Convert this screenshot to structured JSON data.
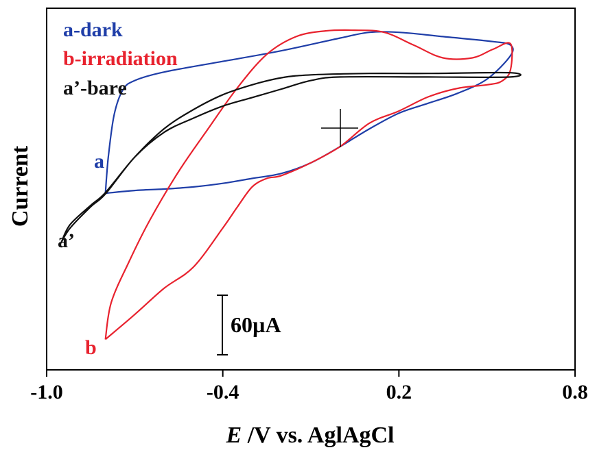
{
  "chart_data": {
    "type": "line",
    "title": "",
    "xlabel_italic": "E",
    "xlabel_rest": " /V vs. AglAgCl",
    "ylabel": "Current",
    "xlim": [
      -1.0,
      0.8
    ],
    "ylim": [
      -330,
      180
    ],
    "y_ticks_shown": false,
    "x_ticks": [
      -1.0,
      -0.4,
      0.2,
      0.8
    ],
    "x_tick_labels": [
      "-1.0",
      "-0.4",
      "0.2",
      "0.8"
    ],
    "grid": false,
    "legend_position": "top-left",
    "legend": [
      {
        "text": "a-dark",
        "color": "#1f3ea8"
      },
      {
        "text": "b-irradiation",
        "color": "#e8222e"
      },
      {
        "text": "a’-bare",
        "color": "#111111"
      }
    ],
    "curve_labels": [
      {
        "text": "a",
        "color": "#1f3ea8"
      },
      {
        "text": "a’",
        "color": "#111111"
      },
      {
        "text": "b",
        "color": "#e8222e"
      }
    ],
    "scale_bar": {
      "label": "60µA",
      "value_uA": 60
    },
    "series": [
      {
        "name": "a-dark",
        "color": "#1f3ea8",
        "points": [
          [
            -0.8,
            -81
          ],
          [
            -0.79,
            -30
          ],
          [
            -0.77,
            30
          ],
          [
            -0.74,
            65
          ],
          [
            -0.7,
            78
          ],
          [
            -0.6,
            90
          ],
          [
            -0.4,
            105
          ],
          [
            -0.2,
            120
          ],
          [
            0.0,
            138
          ],
          [
            0.1,
            146
          ],
          [
            0.2,
            146
          ],
          [
            0.35,
            140
          ],
          [
            0.52,
            133
          ],
          [
            0.58,
            128
          ],
          [
            0.58,
            113
          ],
          [
            0.5,
            80
          ],
          [
            0.4,
            60
          ],
          [
            0.3,
            46
          ],
          [
            0.2,
            32
          ],
          [
            0.1,
            10
          ],
          [
            0.0,
            -15
          ],
          [
            -0.1,
            -38
          ],
          [
            -0.2,
            -53
          ],
          [
            -0.3,
            -60
          ],
          [
            -0.4,
            -67
          ],
          [
            -0.5,
            -72
          ],
          [
            -0.6,
            -75
          ],
          [
            -0.7,
            -77
          ],
          [
            -0.8,
            -81
          ]
        ]
      },
      {
        "name": "b-irradiation",
        "color": "#e8222e",
        "points": [
          [
            -0.8,
            -287
          ],
          [
            -0.78,
            -235
          ],
          [
            -0.72,
            -178
          ],
          [
            -0.65,
            -120
          ],
          [
            -0.55,
            -50
          ],
          [
            -0.45,
            10
          ],
          [
            -0.35,
            68
          ],
          [
            -0.25,
            115
          ],
          [
            -0.15,
            140
          ],
          [
            -0.05,
            148
          ],
          [
            0.05,
            149
          ],
          [
            0.15,
            146
          ],
          [
            0.25,
            128
          ],
          [
            0.35,
            110
          ],
          [
            0.45,
            110
          ],
          [
            0.52,
            122
          ],
          [
            0.58,
            130
          ],
          [
            0.58,
            93
          ],
          [
            0.55,
            77
          ],
          [
            0.5,
            72
          ],
          [
            0.4,
            67
          ],
          [
            0.3,
            55
          ],
          [
            0.2,
            35
          ],
          [
            0.1,
            18
          ],
          [
            0.0,
            -15
          ],
          [
            -0.1,
            -38
          ],
          [
            -0.2,
            -56
          ],
          [
            -0.25,
            -60
          ],
          [
            -0.3,
            -72
          ],
          [
            -0.35,
            -100
          ],
          [
            -0.4,
            -130
          ],
          [
            -0.5,
            -185
          ],
          [
            -0.6,
            -215
          ],
          [
            -0.7,
            -252
          ],
          [
            -0.8,
            -287
          ]
        ]
      },
      {
        "name": "a’-bare",
        "color": "#111111",
        "points": [
          [
            -0.95,
            -150
          ],
          [
            -0.92,
            -125
          ],
          [
            -0.85,
            -98
          ],
          [
            -0.8,
            -80
          ],
          [
            -0.7,
            -30
          ],
          [
            -0.6,
            10
          ],
          [
            -0.5,
            37
          ],
          [
            -0.4,
            58
          ],
          [
            -0.3,
            72
          ],
          [
            -0.2,
            82
          ],
          [
            -0.1,
            86
          ],
          [
            0.1,
            88
          ],
          [
            0.3,
            88
          ],
          [
            0.58,
            89
          ],
          [
            0.58,
            83
          ],
          [
            0.3,
            83
          ],
          [
            0.0,
            83
          ],
          [
            -0.1,
            78
          ],
          [
            -0.2,
            66
          ],
          [
            -0.3,
            54
          ],
          [
            -0.4,
            42
          ],
          [
            -0.5,
            25
          ],
          [
            -0.6,
            5
          ],
          [
            -0.7,
            -30
          ],
          [
            -0.8,
            -82
          ],
          [
            -0.85,
            -100
          ],
          [
            -0.92,
            -130
          ],
          [
            -0.95,
            -150
          ]
        ]
      }
    ]
  }
}
